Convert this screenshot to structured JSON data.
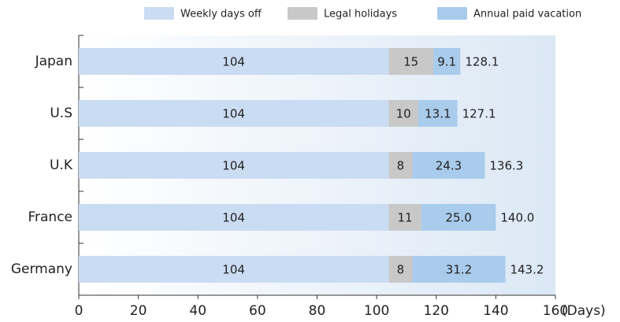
{
  "chart_data": {
    "type": "stacked-barh",
    "categories": [
      "Japan",
      "U.S",
      "U.K",
      "France",
      "Germany"
    ],
    "series": [
      {
        "name": "Weekly days off",
        "color": "#c9dcf2",
        "values": [
          104,
          104,
          104,
          104,
          104
        ]
      },
      {
        "name": "Legal holidays",
        "color": "#c8c8c8",
        "values": [
          15,
          10,
          8,
          11,
          8
        ]
      },
      {
        "name": "Annual paid vacation",
        "color": "#a9cbec",
        "values": [
          9.1,
          13.1,
          24.3,
          25,
          31.2
        ],
        "value_labels": [
          "9.1",
          "13.1",
          "24.3",
          "25.0",
          "31.2"
        ]
      }
    ],
    "totals": [
      128.1,
      127.1,
      136.3,
      140,
      143.2
    ],
    "total_labels": [
      "128.1",
      "127.1",
      "136.3",
      "140.0",
      "143.2"
    ],
    "xlim": [
      0,
      160
    ],
    "xticks": [
      0,
      20,
      40,
      60,
      80,
      100,
      120,
      140,
      160
    ],
    "xlabel": "(Days)",
    "legend": "top"
  }
}
